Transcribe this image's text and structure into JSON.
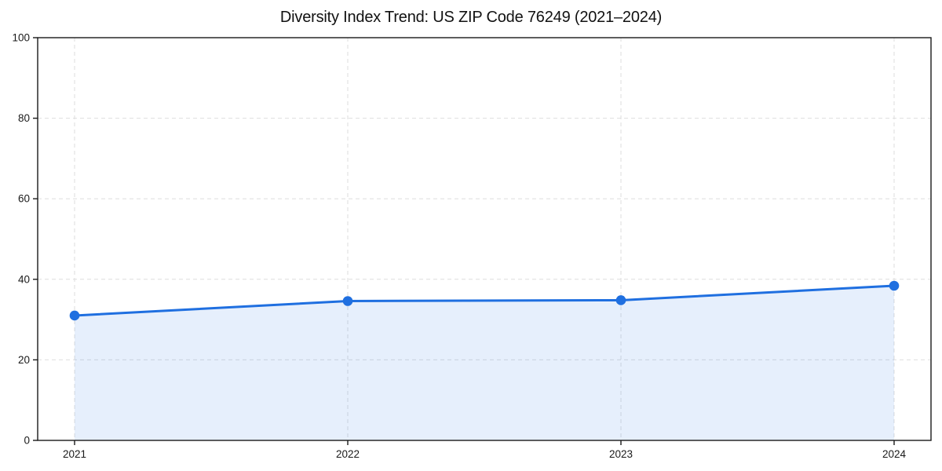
{
  "chart_data": {
    "type": "area",
    "title": "Diversity Index Trend: US ZIP Code 76249 (2021–2024)",
    "series": [
      {
        "name": "Diversity Index",
        "x": [
          2021,
          2022,
          2023,
          2024
        ],
        "values": [
          31.0,
          34.6,
          34.8,
          38.4
        ]
      }
    ],
    "xlabel": "",
    "ylabel": "",
    "ylim": [
      0,
      100
    ],
    "yticks": [
      0,
      20,
      40,
      60,
      80,
      100
    ],
    "xticks": [
      "2021",
      "2022",
      "2023",
      "2024"
    ],
    "grid": true,
    "grid_style": "dashed",
    "legend_position": "none",
    "colors": {
      "line": "#1f6fe0",
      "marker": "#1f6fe0",
      "fill": "rgba(31,111,224,0.11)",
      "grid": "#dedede",
      "spine": "#1a1a1a",
      "tick_text": "#1a1a1a",
      "background": "#ffffff"
    }
  }
}
